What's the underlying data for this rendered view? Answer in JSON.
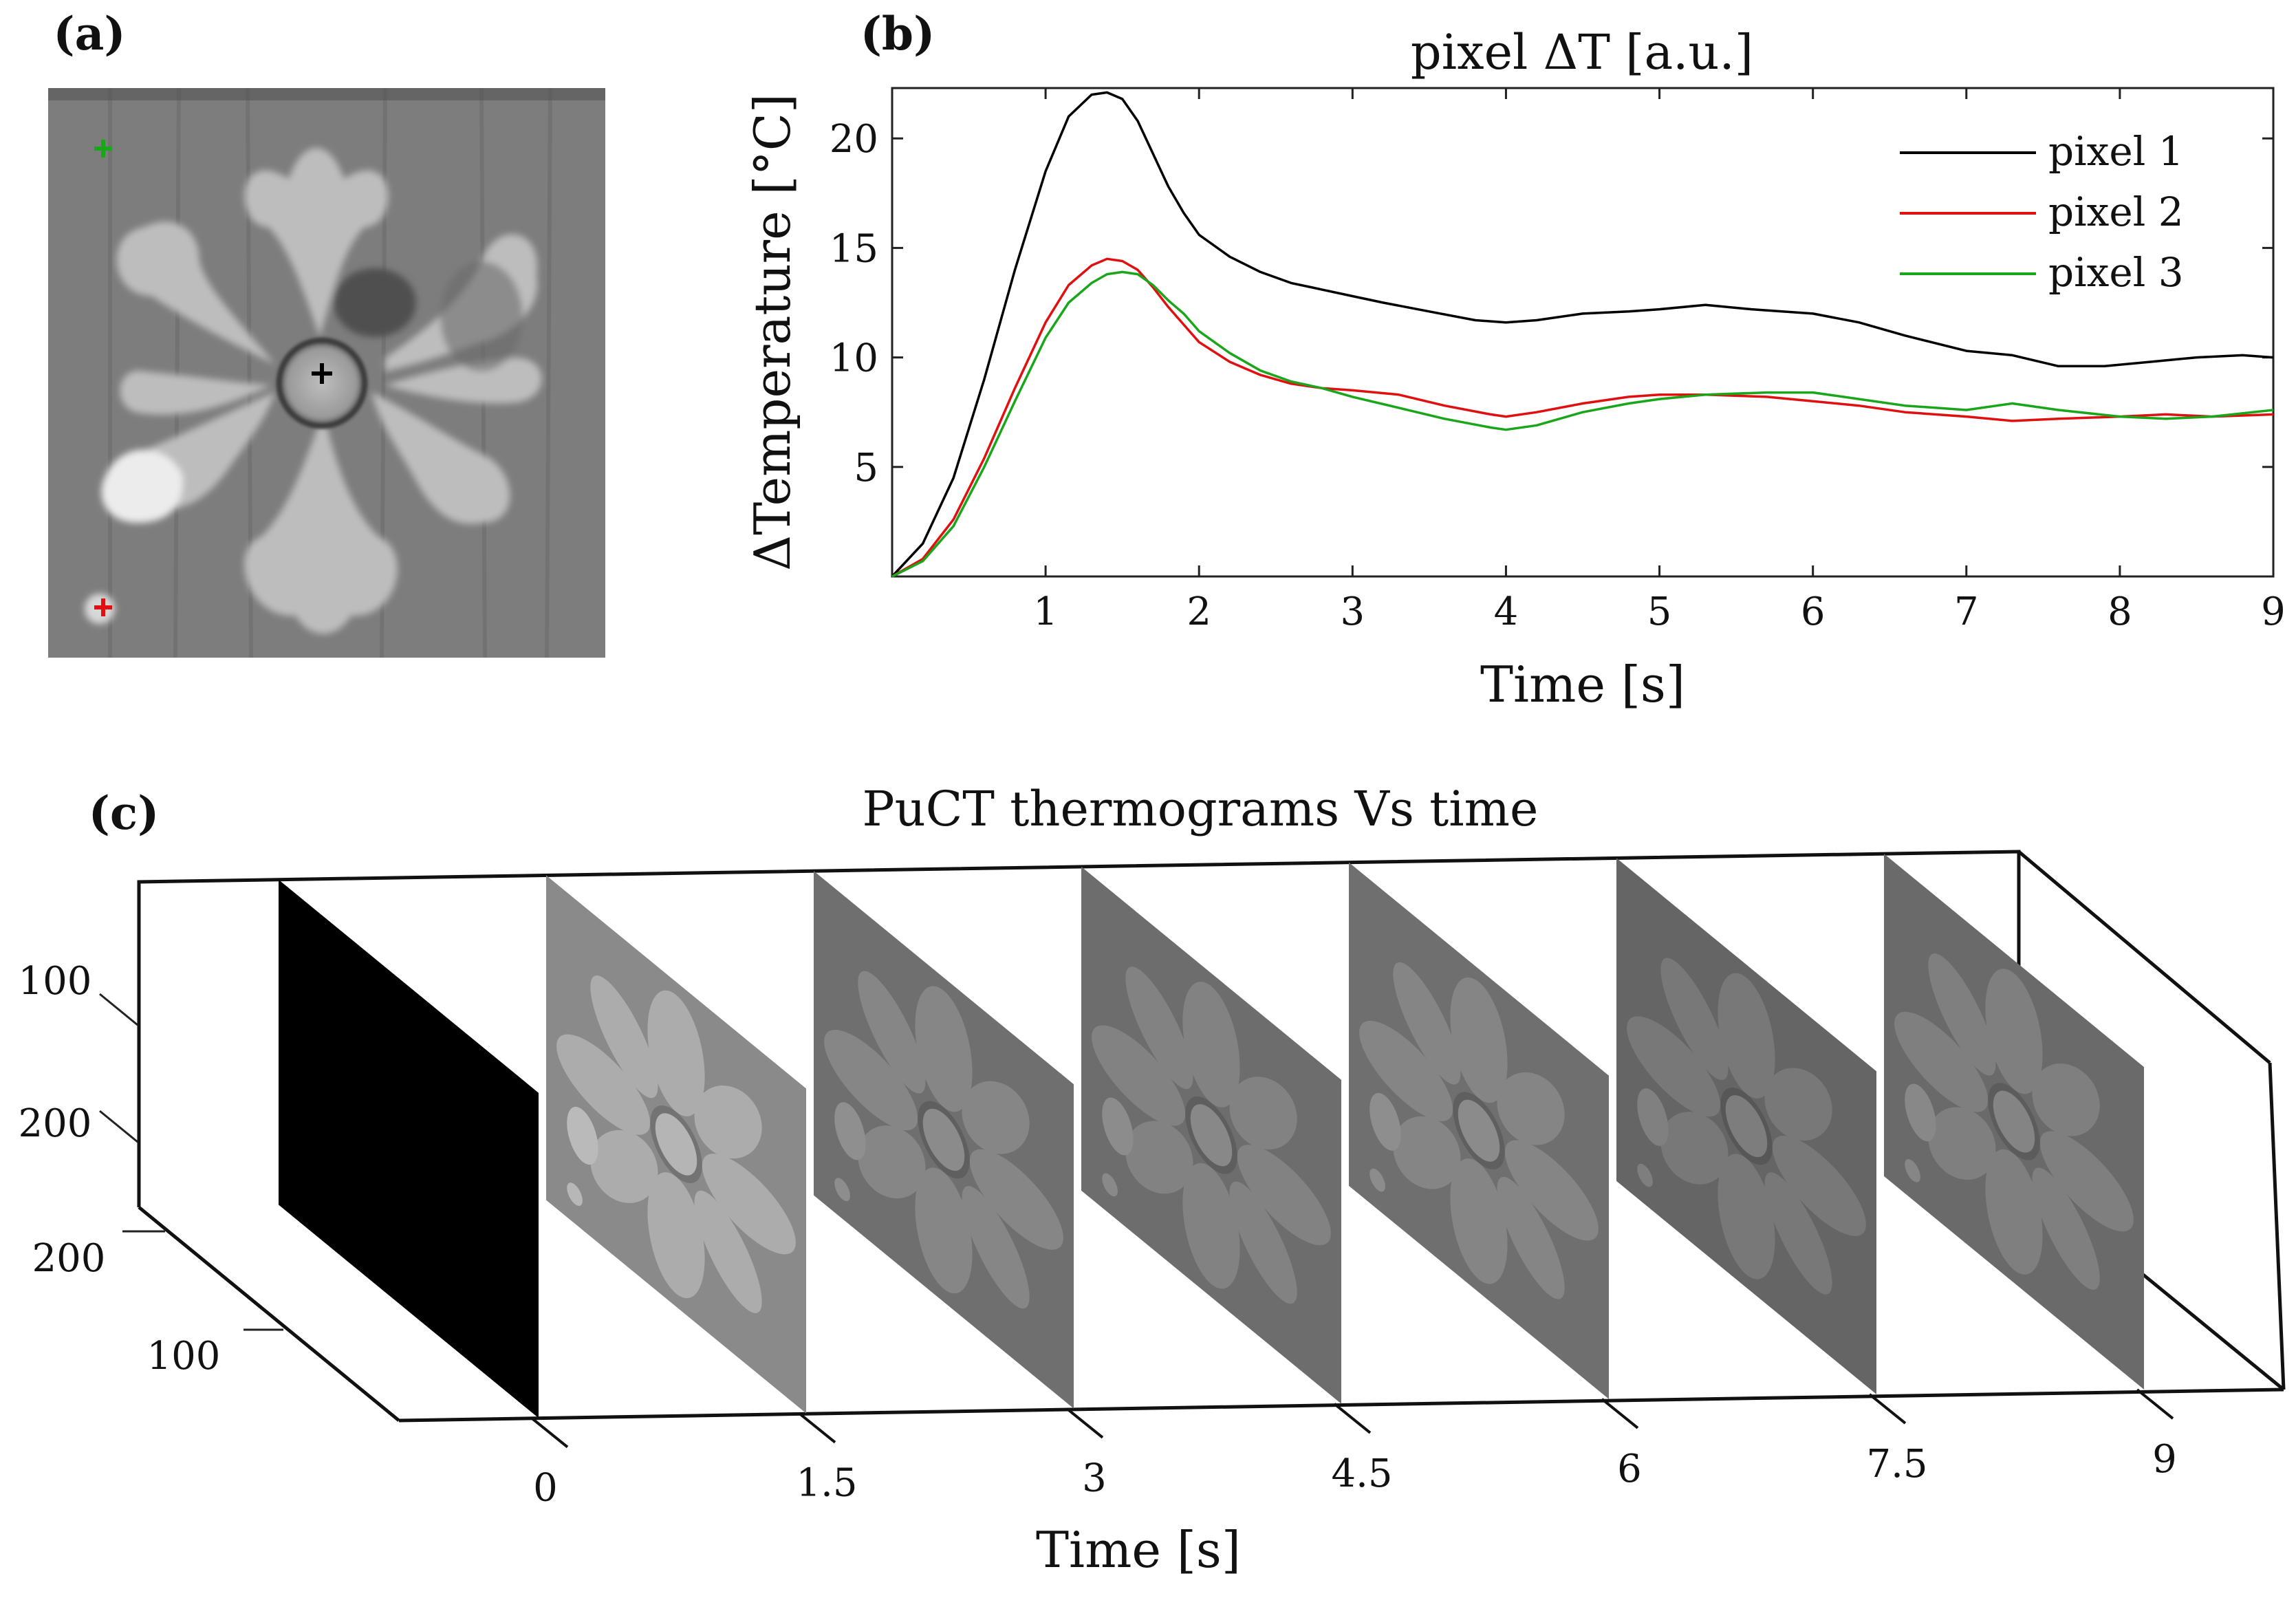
{
  "figure": {
    "panel_a": {
      "label": "(a)",
      "markers": [
        {
          "name": "pixel 3",
          "color": "#1aa61a"
        },
        {
          "name": "pixel 2",
          "color": "#e01010"
        },
        {
          "name": "pixel 1",
          "color": "#000000"
        }
      ]
    },
    "panel_b": {
      "label": "(b)"
    },
    "panel_c": {
      "label": "(c)"
    }
  },
  "chart_data": [
    {
      "id": "b",
      "type": "line",
      "title": "pixel ΔT [a.u.]",
      "xlabel": "Time [s]",
      "ylabel": "ΔTemperature [°C]",
      "xlim": [
        0,
        9
      ],
      "ylim": [
        0,
        22.3
      ],
      "xticks": [
        "1",
        "2",
        "3",
        "4",
        "5",
        "6",
        "7",
        "8",
        "9"
      ],
      "yticks": [
        "5",
        "10",
        "15",
        "20"
      ],
      "legend_position": "top-right",
      "grid": false,
      "series": [
        {
          "name": "pixel 1",
          "color": "#000000",
          "points": [
            [
              0,
              0
            ],
            [
              0.2,
              1.5
            ],
            [
              0.4,
              4.5
            ],
            [
              0.6,
              9
            ],
            [
              0.8,
              14
            ],
            [
              1.0,
              18.5
            ],
            [
              1.15,
              21
            ],
            [
              1.3,
              22
            ],
            [
              1.4,
              22.1
            ],
            [
              1.5,
              21.8
            ],
            [
              1.6,
              20.8
            ],
            [
              1.7,
              19.3
            ],
            [
              1.8,
              17.8
            ],
            [
              1.9,
              16.6
            ],
            [
              2.0,
              15.6
            ],
            [
              2.2,
              14.6
            ],
            [
              2.4,
              13.9
            ],
            [
              2.6,
              13.4
            ],
            [
              2.8,
              13.1
            ],
            [
              3.0,
              12.8
            ],
            [
              3.2,
              12.5
            ],
            [
              3.5,
              12.1
            ],
            [
              3.8,
              11.7
            ],
            [
              4.0,
              11.6
            ],
            [
              4.2,
              11.7
            ],
            [
              4.5,
              12.0
            ],
            [
              4.8,
              12.1
            ],
            [
              5.0,
              12.2
            ],
            [
              5.3,
              12.4
            ],
            [
              5.6,
              12.2
            ],
            [
              6.0,
              12.0
            ],
            [
              6.3,
              11.6
            ],
            [
              6.6,
              11.0
            ],
            [
              7.0,
              10.3
            ],
            [
              7.3,
              10.1
            ],
            [
              7.6,
              9.6
            ],
            [
              7.9,
              9.6
            ],
            [
              8.2,
              9.8
            ],
            [
              8.5,
              10.0
            ],
            [
              8.8,
              10.1
            ],
            [
              9.0,
              10.0
            ]
          ]
        },
        {
          "name": "pixel 2",
          "color": "#e01010",
          "points": [
            [
              0,
              0
            ],
            [
              0.2,
              0.8
            ],
            [
              0.4,
              2.6
            ],
            [
              0.6,
              5.4
            ],
            [
              0.8,
              8.6
            ],
            [
              1.0,
              11.6
            ],
            [
              1.15,
              13.3
            ],
            [
              1.3,
              14.2
            ],
            [
              1.4,
              14.5
            ],
            [
              1.5,
              14.4
            ],
            [
              1.6,
              14.0
            ],
            [
              1.7,
              13.2
            ],
            [
              1.8,
              12.3
            ],
            [
              1.9,
              11.5
            ],
            [
              2.0,
              10.7
            ],
            [
              2.2,
              9.8
            ],
            [
              2.4,
              9.2
            ],
            [
              2.6,
              8.8
            ],
            [
              2.8,
              8.6
            ],
            [
              3.0,
              8.5
            ],
            [
              3.3,
              8.3
            ],
            [
              3.6,
              7.8
            ],
            [
              3.9,
              7.4
            ],
            [
              4.0,
              7.3
            ],
            [
              4.2,
              7.5
            ],
            [
              4.5,
              7.9
            ],
            [
              4.8,
              8.2
            ],
            [
              5.0,
              8.3
            ],
            [
              5.3,
              8.3
            ],
            [
              5.7,
              8.2
            ],
            [
              6.0,
              8.0
            ],
            [
              6.3,
              7.8
            ],
            [
              6.6,
              7.5
            ],
            [
              7.0,
              7.3
            ],
            [
              7.3,
              7.1
            ],
            [
              7.6,
              7.2
            ],
            [
              8.0,
              7.3
            ],
            [
              8.3,
              7.4
            ],
            [
              8.6,
              7.3
            ],
            [
              9.0,
              7.4
            ]
          ]
        },
        {
          "name": "pixel 3",
          "color": "#1aa61a",
          "points": [
            [
              0,
              0
            ],
            [
              0.2,
              0.7
            ],
            [
              0.4,
              2.3
            ],
            [
              0.6,
              5.0
            ],
            [
              0.8,
              8.0
            ],
            [
              1.0,
              10.9
            ],
            [
              1.15,
              12.5
            ],
            [
              1.3,
              13.4
            ],
            [
              1.4,
              13.8
            ],
            [
              1.5,
              13.9
            ],
            [
              1.6,
              13.8
            ],
            [
              1.7,
              13.3
            ],
            [
              1.8,
              12.6
            ],
            [
              1.9,
              12.0
            ],
            [
              2.0,
              11.2
            ],
            [
              2.2,
              10.2
            ],
            [
              2.4,
              9.4
            ],
            [
              2.6,
              8.9
            ],
            [
              2.8,
              8.6
            ],
            [
              3.0,
              8.2
            ],
            [
              3.3,
              7.7
            ],
            [
              3.6,
              7.2
            ],
            [
              3.9,
              6.8
            ],
            [
              4.0,
              6.7
            ],
            [
              4.2,
              6.9
            ],
            [
              4.5,
              7.5
            ],
            [
              4.8,
              7.9
            ],
            [
              5.0,
              8.1
            ],
            [
              5.3,
              8.3
            ],
            [
              5.7,
              8.4
            ],
            [
              6.0,
              8.4
            ],
            [
              6.3,
              8.1
            ],
            [
              6.6,
              7.8
            ],
            [
              7.0,
              7.6
            ],
            [
              7.3,
              7.9
            ],
            [
              7.6,
              7.6
            ],
            [
              8.0,
              7.3
            ],
            [
              8.3,
              7.2
            ],
            [
              8.6,
              7.3
            ],
            [
              9.0,
              7.6
            ]
          ]
        }
      ]
    },
    {
      "id": "c",
      "type": "other",
      "title": "PuCT thermograms Vs time",
      "xlabel": "Time [s]",
      "time_ticks": [
        "0",
        "1.5",
        "3",
        "4.5",
        "6",
        "7.5",
        "9"
      ],
      "y_ticks": [
        "100",
        "200"
      ],
      "z_ticks": [
        "200",
        "100"
      ],
      "frames": [
        {
          "t": 0,
          "level": 0.0
        },
        {
          "t": 1.5,
          "level": 0.62
        },
        {
          "t": 3,
          "level": 0.38
        },
        {
          "t": 4.5,
          "level": 0.36
        },
        {
          "t": 6,
          "level": 0.37
        },
        {
          "t": 7.5,
          "level": 0.3
        },
        {
          "t": 9,
          "level": 0.34
        }
      ]
    }
  ]
}
